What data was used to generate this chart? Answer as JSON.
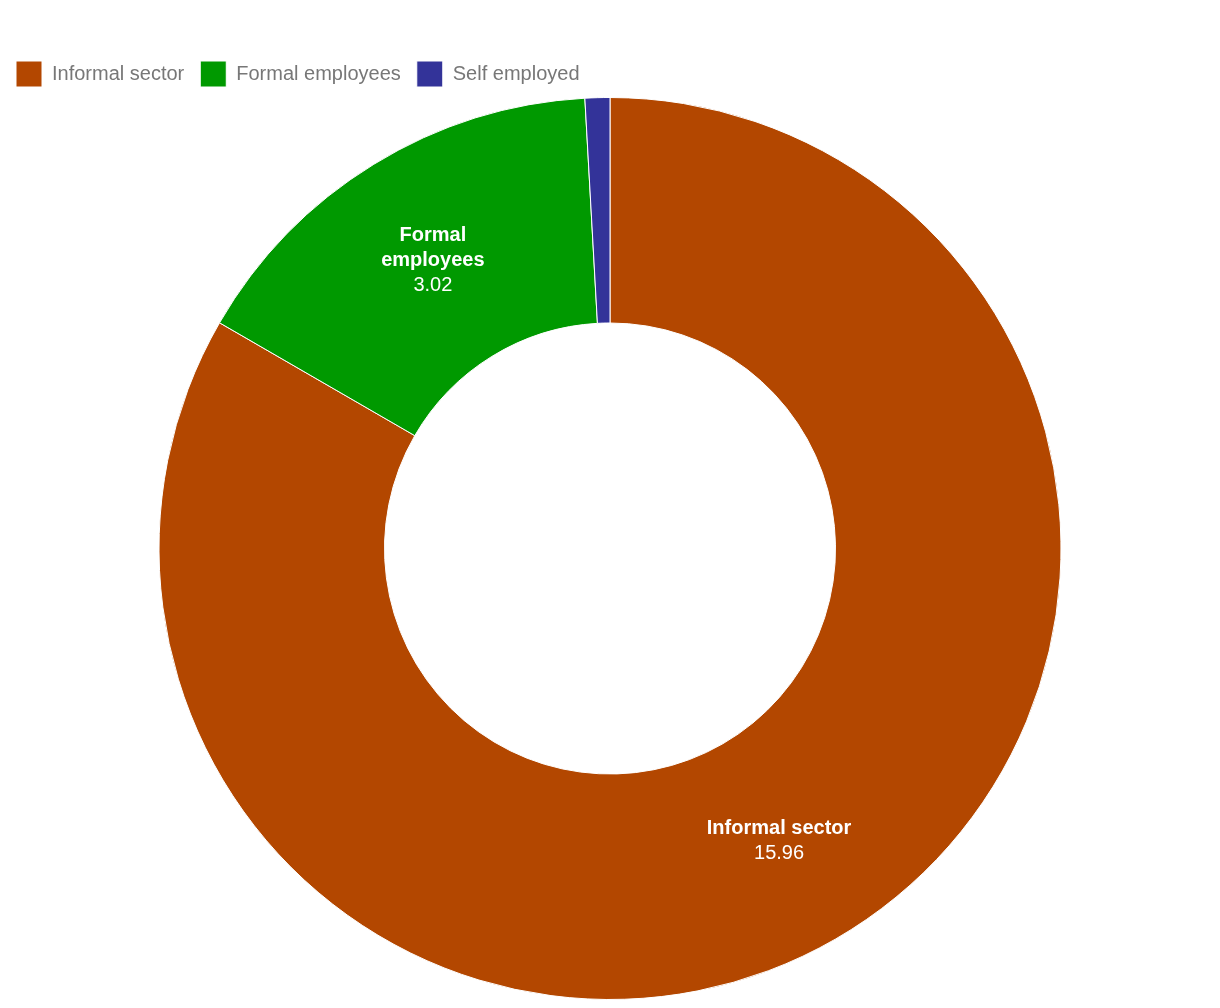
{
  "chart_data": {
    "type": "donut",
    "categories": [
      "Informal sector",
      "Formal employees",
      "Self employed"
    ],
    "values": [
      15.96,
      3.02,
      0.17
    ],
    "value_labels": [
      "15.96",
      "3.02",
      null
    ],
    "colors": [
      "#b34700",
      "#009900",
      "#333399"
    ],
    "legend": "top left"
  }
}
